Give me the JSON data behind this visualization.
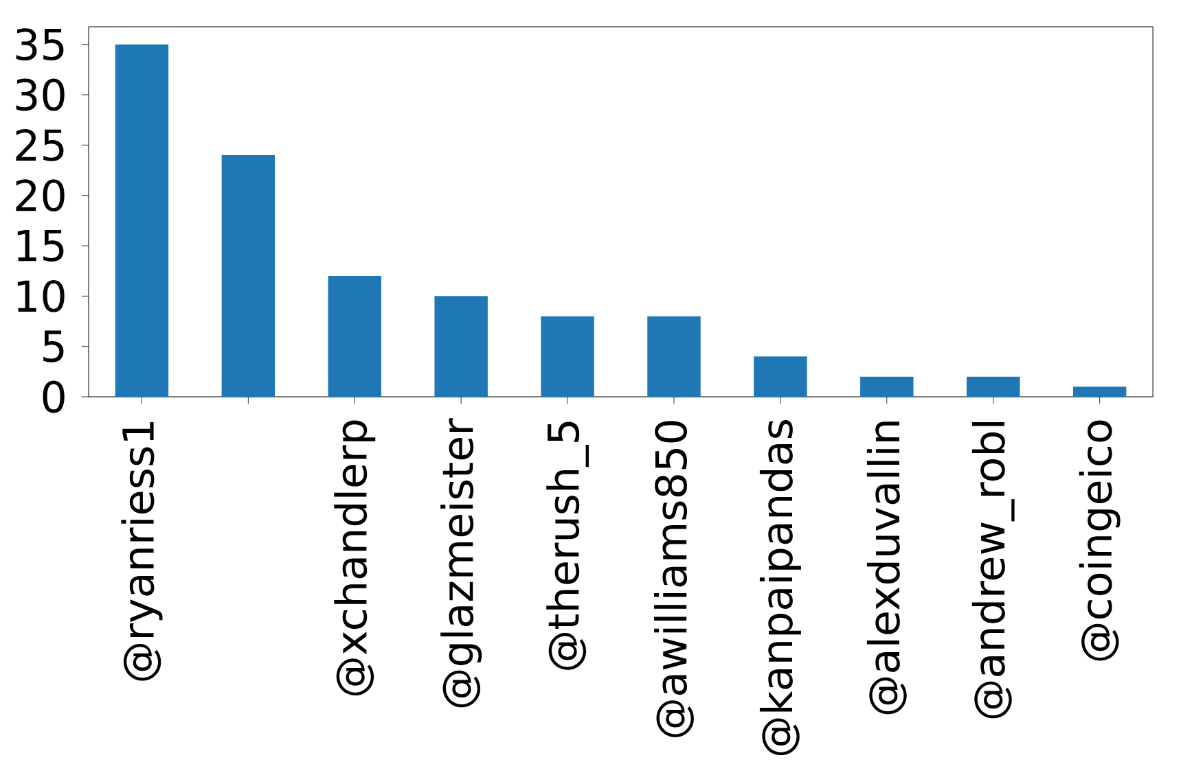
{
  "chart_data": {
    "type": "bar",
    "categories": [
      "@ryanriess1",
      null,
      "@xchandlerp",
      "@glazmeister",
      "@therush_5",
      "@awilliams850",
      "@kanpaipandas",
      "@alexduvallin",
      "@andrew_robl",
      "@coingeico"
    ],
    "values": [
      35,
      24,
      12,
      10,
      8,
      8,
      4,
      2,
      2,
      1
    ],
    "color": "#1f77b4",
    "ylim": [
      0,
      36.75
    ],
    "yticks": [
      0,
      5,
      10,
      15,
      20,
      25,
      30,
      35
    ],
    "grid": false
  }
}
